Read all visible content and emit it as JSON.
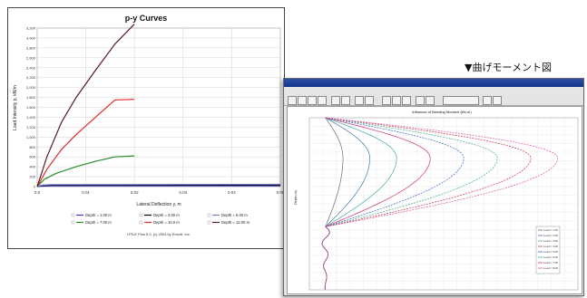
{
  "caption": "▼曲げモーメント図",
  "chart_data": [
    {
      "type": "line",
      "title": "p-y Curves",
      "xlabel": "Lateral Deflection y, m",
      "ylabel": "Load Intensity p, kN/m",
      "footer": "LPILE Plus 5.0, (c) 2004 by Ensoft, Inc.",
      "xlim": [
        0,
        0.05
      ],
      "ylim": [
        0,
        3200
      ],
      "xticks": [
        "0.0",
        "0.01",
        "0.02",
        "0.03",
        "0.04",
        "0.05"
      ],
      "yticks": [
        "0",
        "200",
        "400",
        "600",
        "800",
        "1,000",
        "1,200",
        "1,400",
        "1,600",
        "1,800",
        "2,000",
        "2,200",
        "2,400",
        "2,600",
        "2,800",
        "3,000",
        "3,200"
      ],
      "grid": true,
      "series": [
        {
          "name": "Depth = 1.00 m",
          "color": "#3a3acc",
          "x": [
            0,
            0.001,
            0.003,
            0.05
          ],
          "y": [
            0,
            10,
            14,
            16
          ]
        },
        {
          "name": "Depth = 3.00 m",
          "color": "#000000",
          "x": [
            0,
            0.001,
            0.003,
            0.05
          ],
          "y": [
            0,
            20,
            28,
            30
          ]
        },
        {
          "name": "Depth = 5.00 m",
          "color": "#7777cc",
          "x": [
            0,
            0.001,
            0.003,
            0.05
          ],
          "y": [
            0,
            30,
            40,
            45
          ]
        },
        {
          "name": "Depth = 7.00 m",
          "color": "#2a8a2a",
          "x": [
            0,
            0.0015,
            0.004,
            0.008,
            0.012,
            0.016,
            0.02
          ],
          "y": [
            0,
            150,
            270,
            400,
            510,
            600,
            620
          ]
        },
        {
          "name": "Depth = 10.0 m",
          "color": "#dd2a2a",
          "x": [
            0,
            0.002,
            0.005,
            0.008,
            0.012,
            0.016,
            0.02
          ],
          "y": [
            0,
            350,
            750,
            1050,
            1400,
            1750,
            1760
          ]
        },
        {
          "name": "Depth = 12.00 m",
          "color": "#5a1a24",
          "x": [
            0,
            0.002,
            0.005,
            0.008,
            0.012,
            0.016,
            0.02
          ],
          "y": [
            0,
            600,
            1300,
            1800,
            2350,
            2880,
            3280
          ]
        }
      ]
    },
    {
      "type": "line",
      "title": "Influence of Bending Moment (kN-m)",
      "ylabel": "Depth (m)",
      "orientation": "vertical-depth",
      "xlim": [
        0,
        20
      ],
      "ylim": [
        0,
        30
      ],
      "grid": true,
      "series": [
        {
          "name": "Load = 1.00",
          "color": "#6a6a6a",
          "peak": 2.5
        },
        {
          "name": "Load = 2.00",
          "color": "#4477aa",
          "peak": 4.5
        },
        {
          "name": "Load = 3.00",
          "color": "#44aaaa",
          "peak": 6.5
        },
        {
          "name": "Load = 4.00",
          "color": "#cc3377",
          "peak": 9.0
        },
        {
          "name": "Load = 5.00",
          "color": "#3366bb",
          "peak": 11.5
        },
        {
          "name": "Load = 6.00",
          "color": "#44aa88",
          "peak": 14.0
        },
        {
          "name": "Load = 7.00",
          "color": "#cc3344",
          "peak": 16.5
        },
        {
          "name": "Load = 8.00",
          "color": "#dd55aa",
          "peak": 18.5
        }
      ]
    }
  ]
}
